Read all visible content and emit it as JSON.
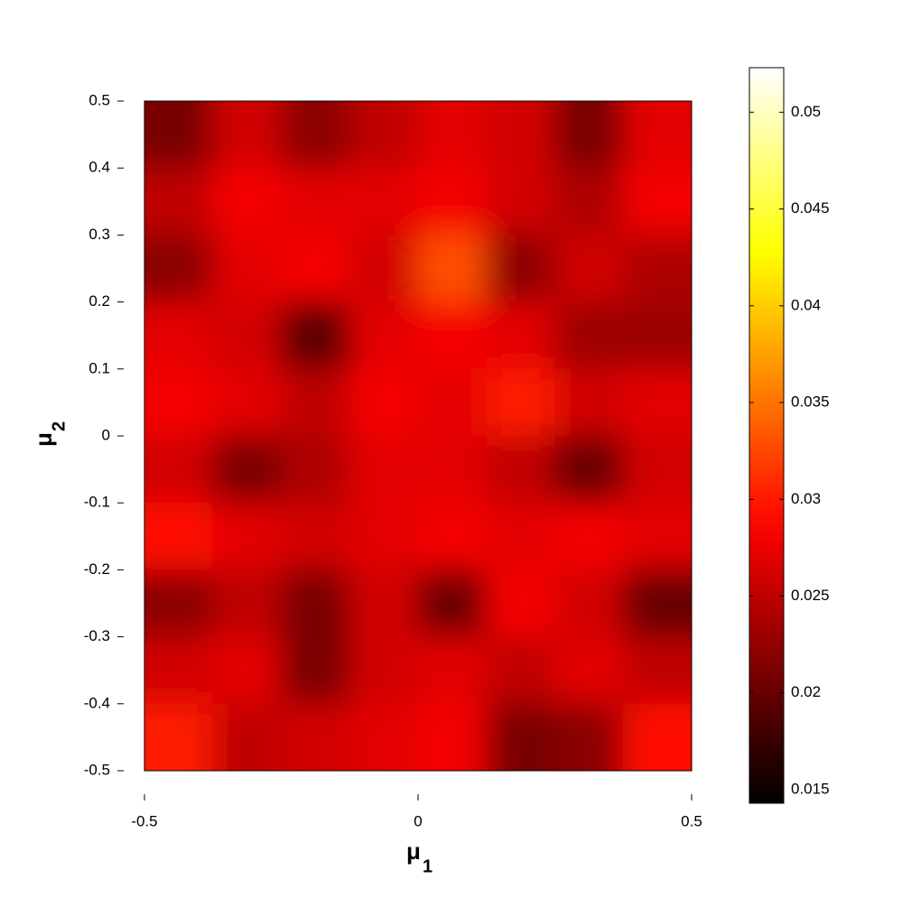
{
  "chart_data": {
    "type": "heatmap",
    "colormap": "hot",
    "xlabel": "μ",
    "xlabel_sub": "1",
    "ylabel": "μ",
    "ylabel_sub": "2",
    "xlim": [
      -0.5,
      0.5
    ],
    "ylim": [
      -0.5,
      0.5
    ],
    "xticks": [
      -0.5,
      0,
      0.5
    ],
    "yticks": [
      -0.5,
      -0.4,
      -0.3,
      -0.2,
      -0.1,
      0,
      0.1,
      0.2,
      0.3,
      0.4,
      0.5
    ],
    "clim": [
      0.0143,
      0.0523
    ],
    "cticks": [
      0.015,
      0.02,
      0.025,
      0.03,
      0.035,
      0.04,
      0.045,
      0.05
    ],
    "x": [
      -0.4375,
      -0.3125,
      -0.1875,
      -0.0625,
      0.0625,
      0.1875,
      0.3125,
      0.4375
    ],
    "y": [
      0.45,
      0.35,
      0.25,
      0.15,
      0.05,
      -0.05,
      -0.15,
      -0.25,
      -0.35,
      -0.45
    ],
    "z": [
      [
        0.021,
        0.026,
        0.022,
        0.025,
        0.027,
        0.026,
        0.021,
        0.027
      ],
      [
        0.025,
        0.028,
        0.027,
        0.027,
        0.028,
        0.026,
        0.024,
        0.028
      ],
      [
        0.022,
        0.027,
        0.028,
        0.026,
        0.033,
        0.022,
        0.026,
        0.024
      ],
      [
        0.027,
        0.026,
        0.019,
        0.027,
        0.028,
        0.027,
        0.023,
        0.023
      ],
      [
        0.028,
        0.027,
        0.025,
        0.028,
        0.027,
        0.03,
        0.026,
        0.027
      ],
      [
        0.026,
        0.021,
        0.024,
        0.027,
        0.027,
        0.025,
        0.02,
        0.026
      ],
      [
        0.029,
        0.027,
        0.026,
        0.027,
        0.028,
        0.027,
        0.028,
        0.027
      ],
      [
        0.022,
        0.025,
        0.021,
        0.026,
        0.02,
        0.028,
        0.026,
        0.02
      ],
      [
        0.026,
        0.027,
        0.021,
        0.026,
        0.027,
        0.025,
        0.027,
        0.025
      ],
      [
        0.03,
        0.025,
        0.026,
        0.027,
        0.028,
        0.021,
        0.022,
        0.029
      ]
    ]
  }
}
